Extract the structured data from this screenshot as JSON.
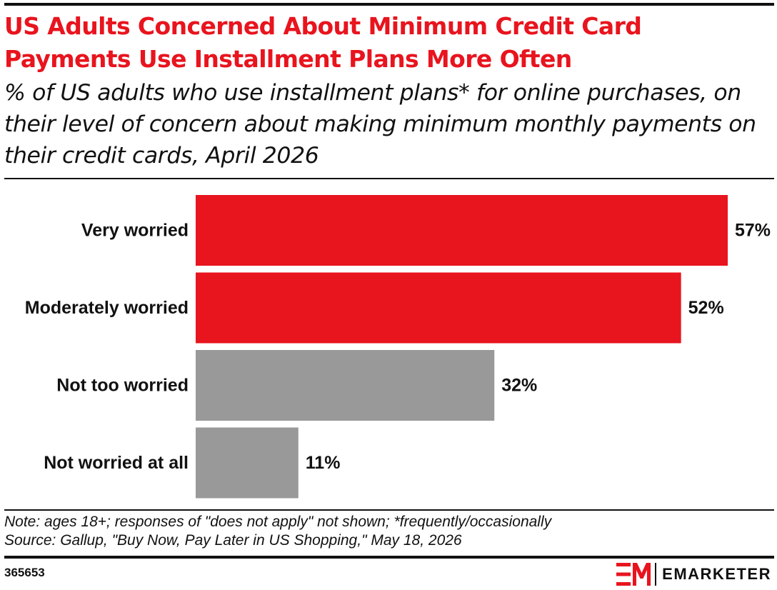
{
  "header": {
    "title": "US Adults Concerned About Minimum Credit Card Payments Use Installment Plans More Often",
    "subtitle": "% of US adults who use installment plans* for online purchases, on their level of concern about making minimum monthly payments on their credit cards, April 2026"
  },
  "chart_data": {
    "type": "bar",
    "orientation": "horizontal",
    "categories": [
      "Very worried",
      "Moderately worried",
      "Not too worried",
      "Not worried at all"
    ],
    "values": [
      57,
      52,
      32,
      11
    ],
    "value_labels": [
      "57%",
      "52%",
      "32%",
      "11%"
    ],
    "bar_colors": [
      "#e8141e",
      "#e8141e",
      "#999999",
      "#999999"
    ],
    "xlim": [
      0,
      57
    ],
    "grid": false,
    "legend": "none"
  },
  "footer": {
    "note": "Note: ages 18+; responses of \"does not apply\" not shown; *frequently/occasionally",
    "source": "Source: Gallup, \"Buy Now, Pay Later in US Shopping,\" May 18, 2026",
    "chart_id": "365653",
    "brand": "EMARKETER"
  },
  "colors": {
    "accent": "#e8141e",
    "neutral_bar": "#999999",
    "text": "#111111"
  }
}
